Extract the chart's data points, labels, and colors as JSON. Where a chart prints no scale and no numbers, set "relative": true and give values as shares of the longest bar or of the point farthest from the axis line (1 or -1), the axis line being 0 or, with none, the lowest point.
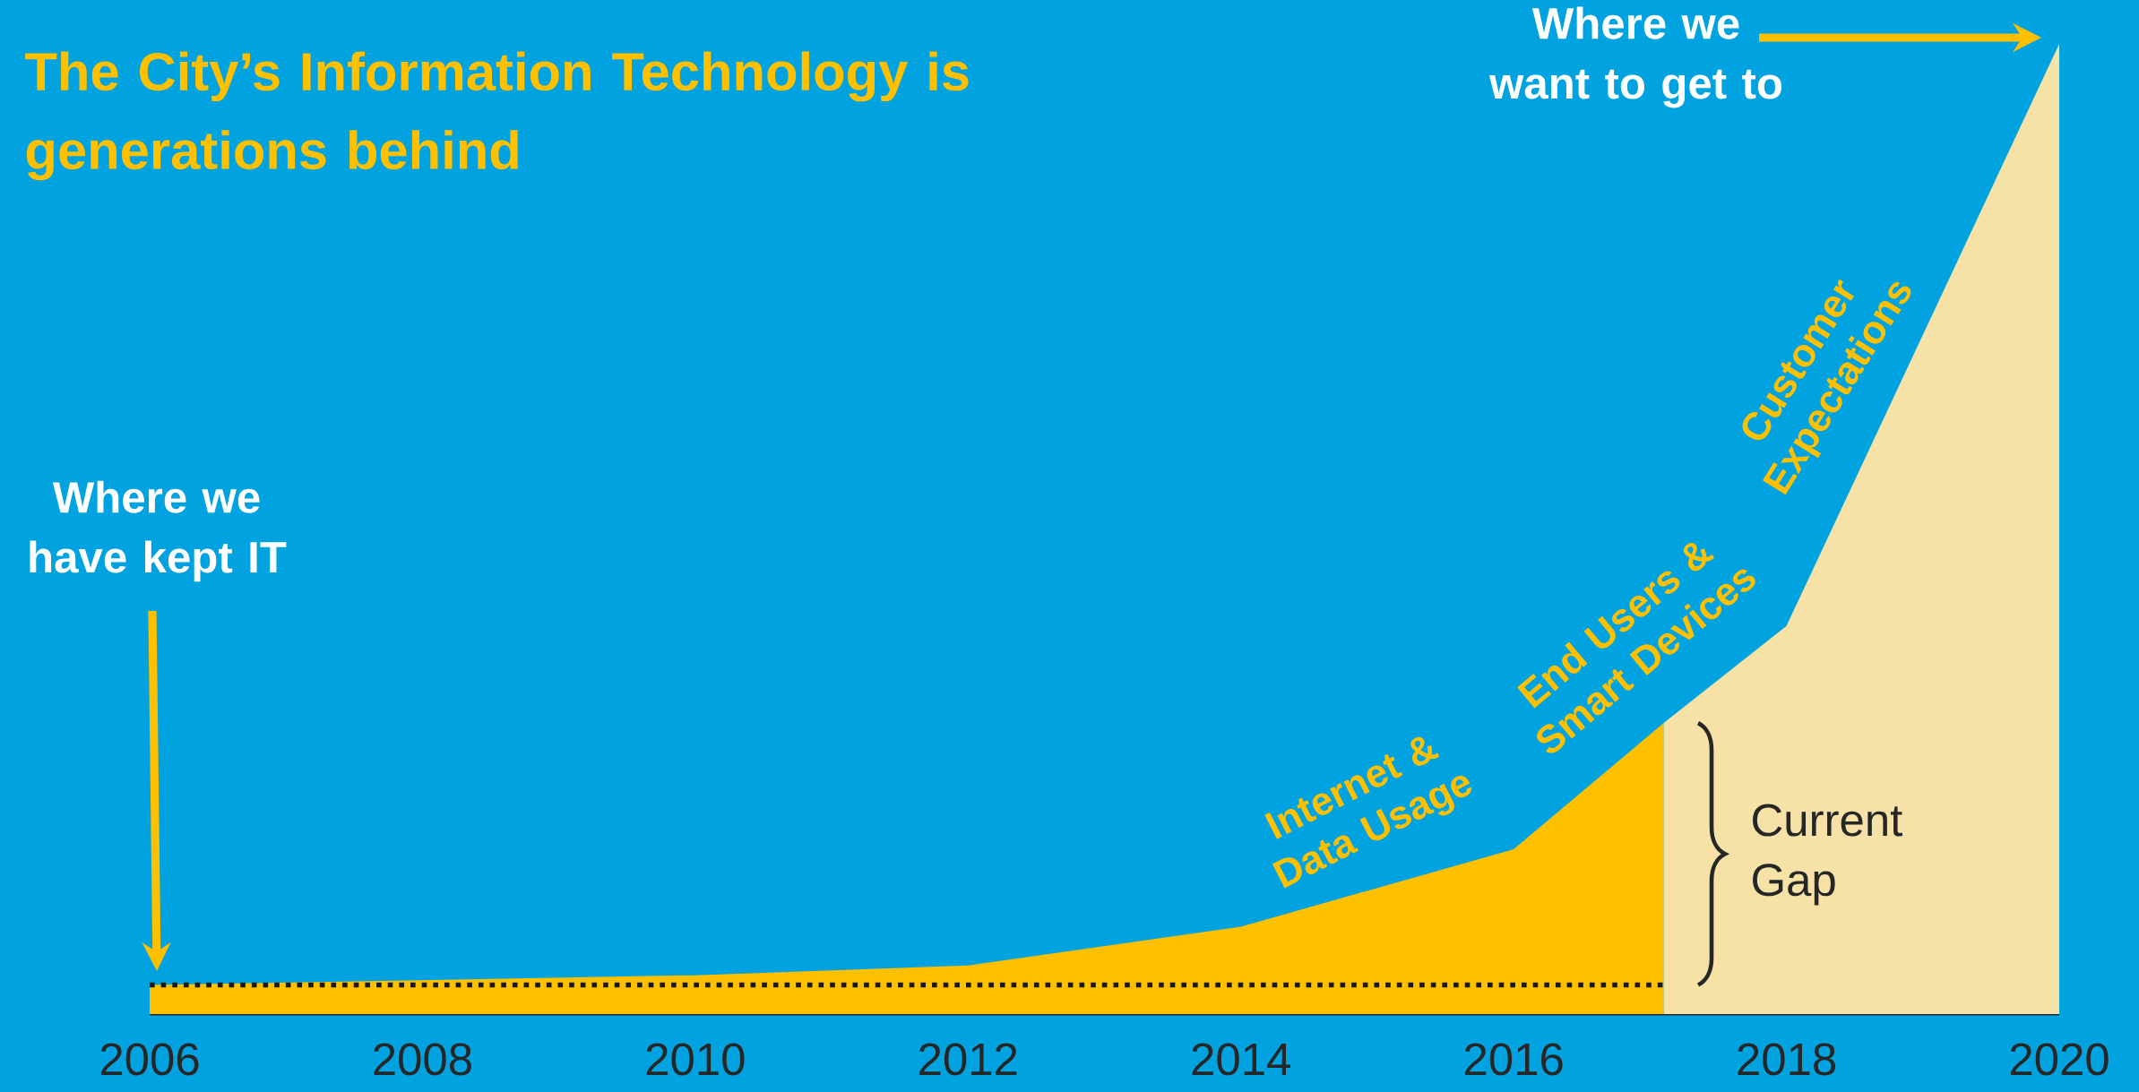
{
  "chart_data": {
    "type": "area",
    "title": "The City’s Information Technology is generations behind",
    "relative": true,
    "xlim": [
      2006,
      2020
    ],
    "xticks": [
      2006,
      2008,
      2010,
      2012,
      2014,
      2016,
      2018,
      2020
    ],
    "series": [
      {
        "x": [
          2006,
          2010,
          2012,
          2014,
          2016,
          2017.1
        ],
        "values": [
          0.03,
          0.04,
          0.05,
          0.09,
          0.17,
          0.3
        ],
        "color": "#ffc000"
      },
      {
        "x": [
          2017.1,
          2018,
          2020
        ],
        "values": [
          0.3,
          0.4,
          1
        ],
        "color": "#f6e2a6"
      },
      {
        "type": "line",
        "line_style": "dotted",
        "x": [
          2006,
          2017.1
        ],
        "values": [
          0.03,
          0.03
        ],
        "color": "#1a1a1a"
      }
    ],
    "annotations": [
      "Where we have kept IT",
      "Where we want to get to",
      "Internet & Data Usage",
      "End Users & Smart Devices",
      "Customer Expectations",
      "Current Gap"
    ]
  }
}
